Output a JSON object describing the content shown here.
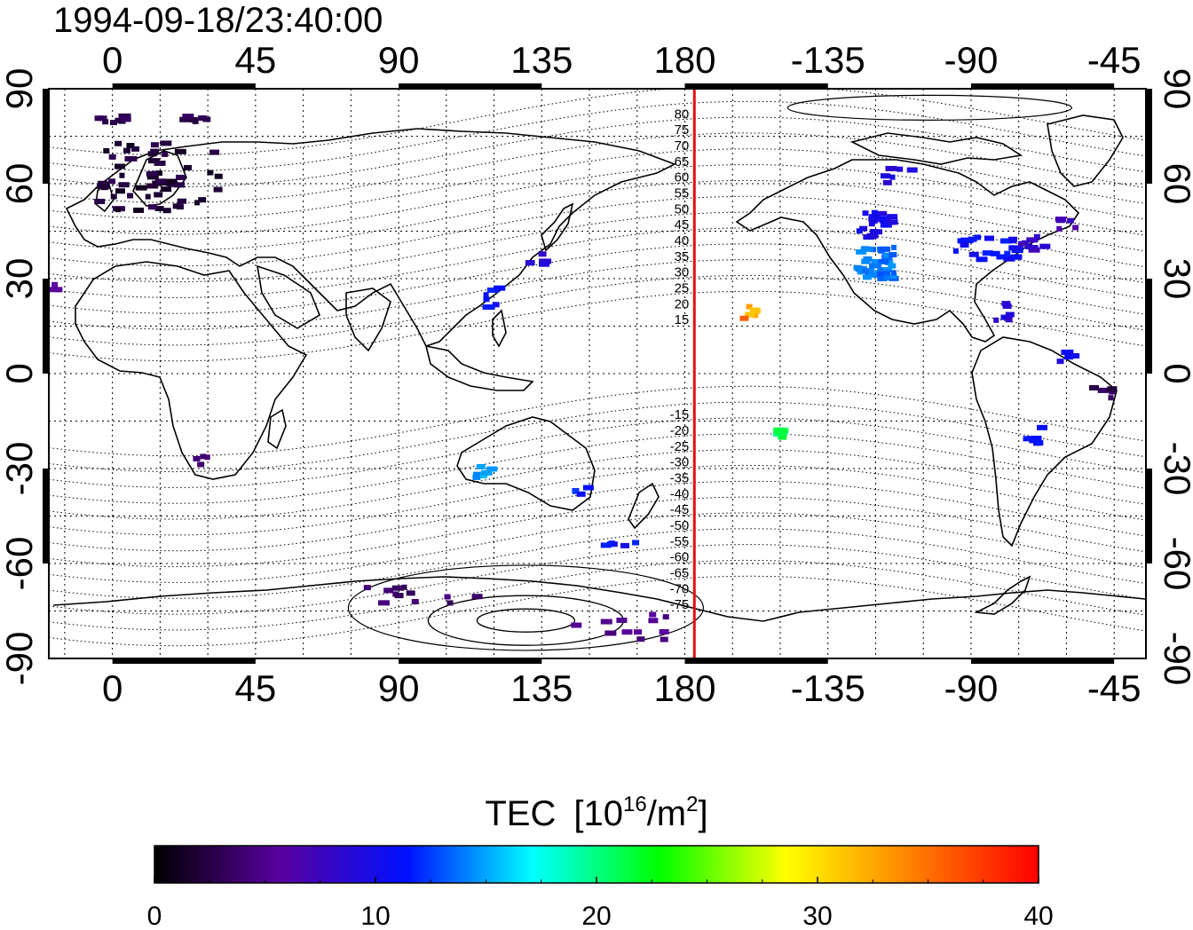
{
  "title": "1994-09-18/23:40:00",
  "map": {
    "lon_ticks": [
      0,
      45,
      90,
      135,
      180,
      225,
      270,
      315
    ],
    "lon_tick_labels": [
      "0",
      "45",
      "90",
      "135",
      "180",
      "-135",
      "-90",
      "-45"
    ],
    "lat_ticks": [
      90,
      60,
      30,
      0,
      -30,
      -60,
      -90
    ],
    "lat_tick_labels": [
      "90",
      "60",
      "30",
      "0",
      "-30",
      "-60",
      "-90"
    ],
    "lon_range": [
      -20,
      325
    ],
    "lat_range": [
      -90,
      90
    ],
    "grid": "dotted every 15 degrees",
    "terminator_meridian_lon": 183,
    "terminator_color": "#e01010",
    "contour_labels": [
      "80",
      "75",
      "70",
      "65",
      "60",
      "55",
      "50",
      "45",
      "40",
      "35",
      "30",
      "25",
      "20",
      "15",
      "-15",
      "-20",
      "-25",
      "-30",
      "-35",
      "-40",
      "-45",
      "-50",
      "-55",
      "-60",
      "-65",
      "-70",
      "-75"
    ]
  },
  "colorbar": {
    "title": "TEC",
    "unit_base": "[10",
    "unit_exp": "16",
    "unit_mid": "/m",
    "unit_exp2": "2",
    "unit_end": "]",
    "min": 0,
    "max": 40,
    "tick_labels": [
      "0",
      "10",
      "20",
      "30",
      "40"
    ],
    "palette": [
      "#000000",
      "#5a00a0",
      "#0010ff",
      "#00ffff",
      "#00ff00",
      "#ffff00",
      "#ff8000",
      "#ff0000"
    ]
  },
  "tec_clusters": [
    {
      "lon": 15,
      "lat": 62,
      "tec": 2,
      "w": 40,
      "h": 22,
      "n": 60
    },
    {
      "lon": 0,
      "lat": 80,
      "tec": 3,
      "w": 10,
      "h": 3,
      "n": 8
    },
    {
      "lon": 25,
      "lat": 80,
      "tec": 3,
      "w": 10,
      "h": 3,
      "n": 6
    },
    {
      "lon": -18,
      "lat": 27,
      "tec": 6,
      "w": 3,
      "h": 3,
      "n": 3
    },
    {
      "lon": 28,
      "lat": -27,
      "tec": 4,
      "w": 6,
      "h": 5,
      "n": 4
    },
    {
      "lon": 120,
      "lat": 25,
      "tec": 11,
      "w": 5,
      "h": 8,
      "n": 6
    },
    {
      "lon": 135,
      "lat": 36,
      "tec": 9,
      "w": 8,
      "h": 4,
      "n": 5
    },
    {
      "lon": 117,
      "lat": -31,
      "tec": 15,
      "w": 6,
      "h": 5,
      "n": 6
    },
    {
      "lon": 148,
      "lat": -37,
      "tec": 12,
      "w": 6,
      "h": 5,
      "n": 4
    },
    {
      "lon": 158,
      "lat": -54,
      "tec": 11,
      "w": 14,
      "h": 2,
      "n": 5
    },
    {
      "lon": 100,
      "lat": -70,
      "tec": 4,
      "w": 40,
      "h": 5,
      "n": 12
    },
    {
      "lon": 160,
      "lat": -80,
      "tec": 5,
      "w": 30,
      "h": 8,
      "n": 12
    },
    {
      "lon": 203,
      "lat": 20,
      "tec": 32,
      "w": 6,
      "h": 4,
      "n": 7
    },
    {
      "lon": 198,
      "lat": 17,
      "tec": 36,
      "w": 2,
      "h": 1,
      "n": 1
    },
    {
      "lon": 210,
      "lat": -19,
      "tec": 21,
      "w": 5,
      "h": 3,
      "n": 6
    },
    {
      "lon": 240,
      "lat": 35,
      "tec": 14,
      "w": 12,
      "h": 10,
      "n": 40
    },
    {
      "lon": 240,
      "lat": 47,
      "tec": 10,
      "w": 14,
      "h": 8,
      "n": 20
    },
    {
      "lon": 248,
      "lat": 62,
      "tec": 9,
      "w": 10,
      "h": 6,
      "n": 6
    },
    {
      "lon": 275,
      "lat": 40,
      "tec": 11,
      "w": 20,
      "h": 8,
      "n": 25
    },
    {
      "lon": 290,
      "lat": 42,
      "tec": 8,
      "w": 8,
      "h": 6,
      "n": 8
    },
    {
      "lon": 300,
      "lat": 47,
      "tec": 7,
      "w": 6,
      "h": 4,
      "n": 5
    },
    {
      "lon": 280,
      "lat": 20,
      "tec": 9,
      "w": 5,
      "h": 8,
      "n": 6
    },
    {
      "lon": 290,
      "lat": -18,
      "tec": 11,
      "w": 5,
      "h": 8,
      "n": 6
    },
    {
      "lon": 312,
      "lat": -6,
      "tec": 3,
      "w": 8,
      "h": 5,
      "n": 5
    },
    {
      "lon": 300,
      "lat": 5,
      "tec": 10,
      "w": 5,
      "h": 4,
      "n": 4
    }
  ]
}
